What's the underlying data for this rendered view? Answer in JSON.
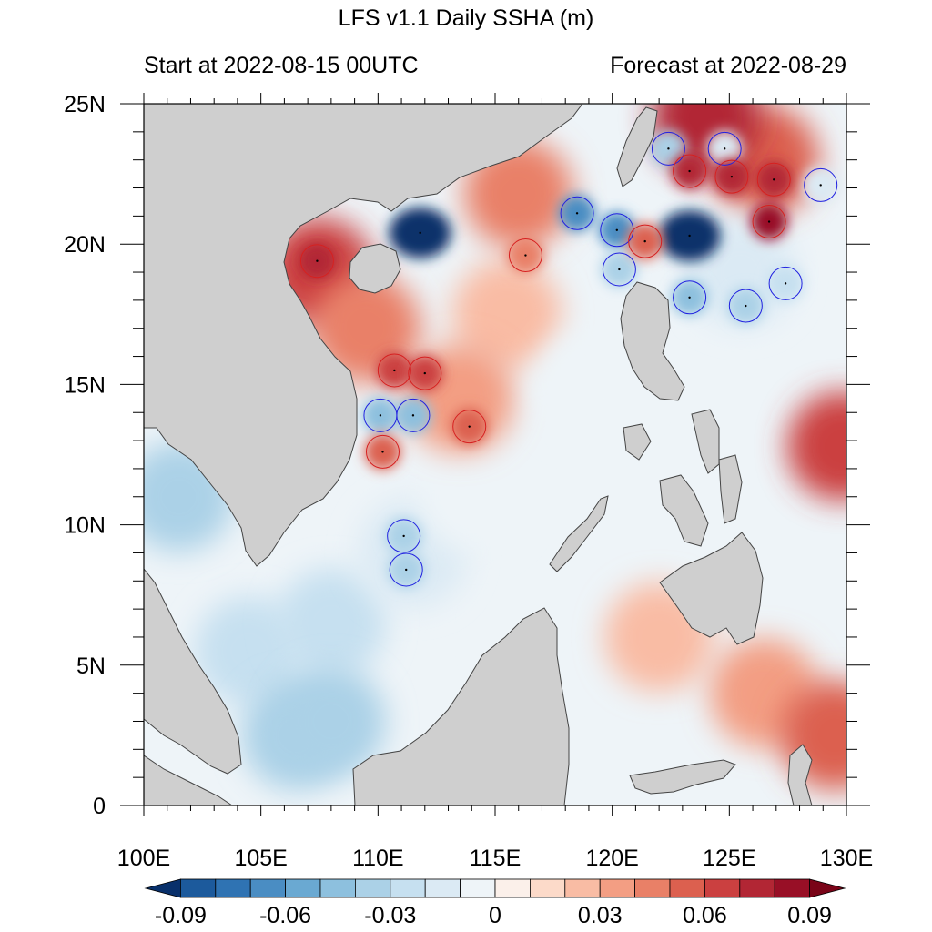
{
  "title": "LFS v1.1 Daily SSHA (m)",
  "subtitle_left": "Start at 2022-08-15 00UTC",
  "subtitle_right": "Forecast at 2022-08-29",
  "colors": {
    "land": "#cfcfcf",
    "coast": "#444444",
    "eddy_warm_outline": "#d62020",
    "eddy_cold_outline": "#2020e0"
  },
  "chart_data": {
    "type": "heatmap",
    "title": "LFS v1.1 Daily SSHA (m)",
    "xlim": [
      100,
      130
    ],
    "ylim": [
      0,
      25
    ],
    "x_ticks": [
      {
        "value": 100,
        "label": "100E"
      },
      {
        "value": 105,
        "label": "105E"
      },
      {
        "value": 110,
        "label": "110E"
      },
      {
        "value": 115,
        "label": "115E"
      },
      {
        "value": 120,
        "label": "120E"
      },
      {
        "value": 125,
        "label": "125E"
      },
      {
        "value": 130,
        "label": "130E"
      }
    ],
    "y_ticks": [
      {
        "value": 0,
        "label": "0"
      },
      {
        "value": 5,
        "label": "5N"
      },
      {
        "value": 10,
        "label": "10N"
      },
      {
        "value": 15,
        "label": "15N"
      },
      {
        "value": 20,
        "label": "20N"
      },
      {
        "value": 25,
        "label": "25N"
      }
    ],
    "colorbar": {
      "levels": [
        -0.1,
        -0.09,
        -0.08,
        -0.07,
        -0.06,
        -0.05,
        -0.04,
        -0.03,
        -0.02,
        -0.01,
        0,
        0.01,
        0.02,
        0.03,
        0.04,
        0.05,
        0.06,
        0.07,
        0.08,
        0.09,
        0.1
      ],
      "colors": [
        "#08306b",
        "#1c5a9c",
        "#2f73b3",
        "#4a8dc3",
        "#6aa9d2",
        "#8dc0de",
        "#abd1e7",
        "#c6e0f0",
        "#dbeaf4",
        "#eef4f8",
        "#fbf0ea",
        "#fcdac9",
        "#f9bca4",
        "#f39e83",
        "#e98067",
        "#dc604f",
        "#cb4040",
        "#b22634",
        "#980f26",
        "#7a0418"
      ],
      "labels": [
        {
          "value": -0.09,
          "text": "-0.09"
        },
        {
          "value": -0.06,
          "text": "-0.06"
        },
        {
          "value": -0.03,
          "text": "-0.03"
        },
        {
          "value": 0,
          "text": "0"
        },
        {
          "value": 0.03,
          "text": "0.03"
        },
        {
          "value": 0.06,
          "text": "0.06"
        },
        {
          "value": 0.09,
          "text": "0.09"
        }
      ]
    },
    "anomaly_regions": [
      {
        "lon": 101.5,
        "lat": 11.0,
        "value": -0.035
      },
      {
        "lon": 104.5,
        "lat": 5.5,
        "value": -0.03
      },
      {
        "lon": 106.5,
        "lat": 2.5,
        "value": -0.04
      },
      {
        "lon": 108.0,
        "lat": 6.5,
        "value": -0.03
      },
      {
        "lon": 111.5,
        "lat": 9.0,
        "value": -0.015
      },
      {
        "lon": 114.0,
        "lat": 11.0,
        "value": -0.01
      },
      {
        "lon": 117.0,
        "lat": 6.0,
        "value": -0.01
      },
      {
        "lon": 121.0,
        "lat": 3.5,
        "value": -0.01
      },
      {
        "lon": 107.5,
        "lat": 19.0,
        "value": 0.065
      },
      {
        "lon": 109.5,
        "lat": 17.0,
        "value": 0.045
      },
      {
        "lon": 115.5,
        "lat": 17.5,
        "value": 0.02
      },
      {
        "lon": 113.5,
        "lat": 14.5,
        "value": 0.03
      },
      {
        "lon": 116.0,
        "lat": 21.8,
        "value": 0.04
      },
      {
        "lon": 126.5,
        "lat": 23.0,
        "value": 0.05
      },
      {
        "lon": 124.0,
        "lat": 24.5,
        "value": 0.07
      },
      {
        "lon": 122.0,
        "lat": 6.0,
        "value": 0.02
      },
      {
        "lon": 126.5,
        "lat": 4.0,
        "value": 0.03
      },
      {
        "lon": 129.5,
        "lat": 2.5,
        "value": 0.05
      },
      {
        "lon": 129.8,
        "lat": 12.8,
        "value": 0.06
      },
      {
        "lon": 108.0,
        "lat": 3.0,
        "value": -0.035
      },
      {
        "lon": 125.5,
        "lat": 19.0,
        "value": -0.02
      },
      {
        "lon": 119.0,
        "lat": 15.0,
        "value": -0.01
      }
    ],
    "eddies": [
      {
        "lon": 111.8,
        "lat": 20.4,
        "value": -0.1,
        "type": "cold"
      },
      {
        "lon": 123.3,
        "lat": 20.3,
        "value": -0.1,
        "type": "cold"
      },
      {
        "lon": 118.5,
        "lat": 21.1,
        "value": -0.07,
        "type": "cold"
      },
      {
        "lon": 120.2,
        "lat": 20.5,
        "value": -0.07,
        "type": "cold"
      },
      {
        "lon": 120.3,
        "lat": 19.1,
        "value": -0.04,
        "type": "cold"
      },
      {
        "lon": 122.4,
        "lat": 23.4,
        "value": -0.04,
        "type": "cold"
      },
      {
        "lon": 124.8,
        "lat": 23.4,
        "value": -0.02,
        "type": "cold"
      },
      {
        "lon": 128.9,
        "lat": 22.1,
        "value": -0.02,
        "type": "cold"
      },
      {
        "lon": 123.3,
        "lat": 18.1,
        "value": -0.05,
        "type": "cold"
      },
      {
        "lon": 125.7,
        "lat": 17.8,
        "value": -0.04,
        "type": "cold"
      },
      {
        "lon": 127.4,
        "lat": 18.6,
        "value": -0.03,
        "type": "cold"
      },
      {
        "lon": 110.1,
        "lat": 13.9,
        "value": -0.05,
        "type": "cold"
      },
      {
        "lon": 111.5,
        "lat": 13.9,
        "value": -0.05,
        "type": "cold"
      },
      {
        "lon": 111.1,
        "lat": 9.6,
        "value": -0.04,
        "type": "cold"
      },
      {
        "lon": 111.2,
        "lat": 8.4,
        "value": -0.04,
        "type": "cold"
      },
      {
        "lon": 110.7,
        "lat": 15.5,
        "value": 0.06,
        "type": "warm"
      },
      {
        "lon": 112.0,
        "lat": 15.4,
        "value": 0.06,
        "type": "warm"
      },
      {
        "lon": 113.9,
        "lat": 13.5,
        "value": 0.05,
        "type": "warm"
      },
      {
        "lon": 110.2,
        "lat": 12.6,
        "value": 0.05,
        "type": "warm"
      },
      {
        "lon": 116.3,
        "lat": 19.6,
        "value": 0.04,
        "type": "warm"
      },
      {
        "lon": 121.4,
        "lat": 20.1,
        "value": 0.05,
        "type": "warm"
      },
      {
        "lon": 123.3,
        "lat": 22.6,
        "value": 0.07,
        "type": "warm"
      },
      {
        "lon": 125.1,
        "lat": 22.4,
        "value": 0.07,
        "type": "warm"
      },
      {
        "lon": 126.9,
        "lat": 22.3,
        "value": 0.07,
        "type": "warm"
      },
      {
        "lon": 126.7,
        "lat": 20.8,
        "value": 0.08,
        "type": "warm"
      },
      {
        "lon": 107.4,
        "lat": 19.4,
        "value": 0.07,
        "type": "warm"
      }
    ]
  }
}
